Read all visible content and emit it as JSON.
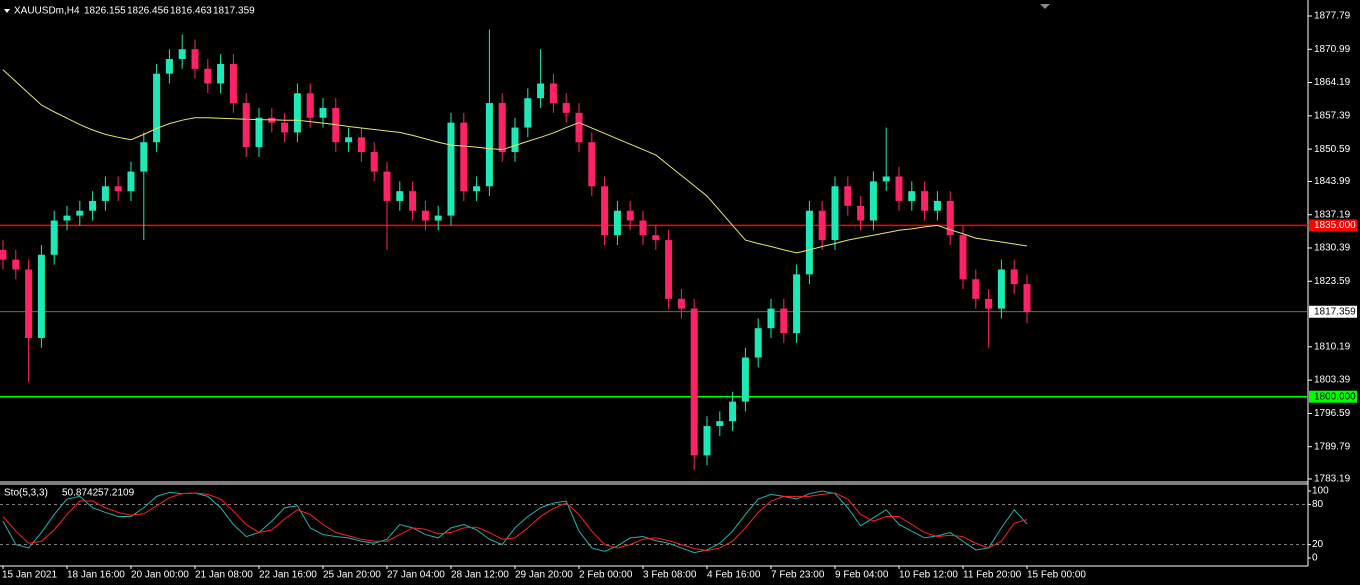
{
  "chart_data": {
    "type": "candlestick",
    "title": "XAUUSDm,H4",
    "header_values": [
      1826.155,
      1826.456,
      1816.463,
      1817.359
    ],
    "categories": [
      "15 Jan 2021",
      null,
      null,
      null,
      null,
      "18 Jan 16:00",
      null,
      null,
      null,
      null,
      "20 Jan 00:00",
      null,
      null,
      null,
      null,
      "21 Jan 08:00",
      null,
      null,
      null,
      null,
      "22 Jan 16:00",
      null,
      null,
      null,
      null,
      "25 Jan 20:00",
      null,
      null,
      null,
      null,
      "27 Jan 04:00",
      null,
      null,
      null,
      null,
      "28 Jan 12:00",
      null,
      null,
      null,
      null,
      "29 Jan 20:00",
      null,
      null,
      null,
      null,
      "2 Feb 00:00",
      null,
      null,
      null,
      null,
      "3 Feb 08:00",
      null,
      null,
      null,
      null,
      "4 Feb 16:00",
      null,
      null,
      null,
      null,
      "7 Feb 23:00",
      null,
      null,
      null,
      null,
      "9 Feb 04:00",
      null,
      null,
      null,
      null,
      "10 Feb 12:00",
      null,
      null,
      null,
      null,
      "11 Feb 20:00",
      null,
      null,
      null,
      null,
      "15 Feb 00:00"
    ],
    "open": [
      1830,
      1828,
      1826,
      1812,
      1829,
      1836,
      1837,
      1838,
      1840,
      1843,
      1842,
      1846,
      1852,
      1866,
      1869,
      1871,
      1867,
      1864,
      1868,
      1860,
      1851,
      1857,
      1856,
      1854,
      1862,
      1857,
      1859,
      1852,
      1853,
      1850,
      1846,
      1840,
      1842,
      1838,
      1836,
      1837,
      1856,
      1842,
      1843,
      1860,
      1850,
      1855,
      1861,
      1864,
      1860,
      1858,
      1852,
      1843,
      1833,
      1838,
      1836,
      1833,
      1832,
      1820,
      1818,
      1788,
      1794,
      1795,
      1799,
      1808,
      1814,
      1818,
      1813,
      1825,
      1838,
      1832,
      1843,
      1839,
      1836,
      1844,
      1845,
      1840,
      1842,
      1838,
      1840,
      1833,
      1824,
      1820,
      1818,
      1826,
      1823
    ],
    "high": [
      1832,
      1830,
      1828,
      1831,
      1838,
      1839,
      1840,
      1842,
      1845,
      1845,
      1848,
      1854,
      1868,
      1871,
      1874,
      1873,
      1869,
      1870,
      1870,
      1862,
      1859,
      1859,
      1858,
      1864,
      1864,
      1861,
      1861,
      1855,
      1855,
      1852,
      1848,
      1844,
      1844,
      1840,
      1839,
      1858,
      1858,
      1845,
      1875,
      1862,
      1857,
      1863,
      1871,
      1866,
      1862,
      1860,
      1854,
      1845,
      1840,
      1840,
      1838,
      1835,
      1834,
      1822,
      1820,
      1796,
      1797,
      1801,
      1810,
      1816,
      1820,
      1820,
      1827,
      1840,
      1840,
      1845,
      1845,
      1841,
      1846,
      1855,
      1847,
      1844,
      1844,
      1842,
      1842,
      1835,
      1826,
      1822,
      1828,
      1828,
      1825
    ],
    "low": [
      1826,
      1824,
      1803,
      1810,
      1827,
      1834,
      1835,
      1836,
      1838,
      1840,
      1840,
      1832,
      1850,
      1864,
      1867,
      1865,
      1862,
      1862,
      1858,
      1849,
      1849,
      1854,
      1852,
      1852,
      1855,
      1855,
      1850,
      1850,
      1848,
      1844,
      1830,
      1838,
      1836,
      1834,
      1834,
      1835,
      1840,
      1840,
      1841,
      1848,
      1848,
      1853,
      1859,
      1858,
      1856,
      1850,
      1841,
      1831,
      1831,
      1834,
      1831,
      1830,
      1818,
      1816,
      1785,
      1786,
      1792,
      1793,
      1797,
      1806,
      1812,
      1811,
      1811,
      1823,
      1830,
      1830,
      1837,
      1834,
      1834,
      1842,
      1838,
      1838,
      1836,
      1836,
      1831,
      1822,
      1818,
      1810,
      1816,
      1821,
      1815
    ],
    "close": [
      1828,
      1826,
      1812,
      1829,
      1836,
      1837,
      1838,
      1840,
      1843,
      1842,
      1846,
      1852,
      1866,
      1869,
      1871,
      1867,
      1864,
      1868,
      1860,
      1851,
      1857,
      1856,
      1854,
      1862,
      1857,
      1859,
      1852,
      1853,
      1850,
      1846,
      1840,
      1842,
      1838,
      1836,
      1837,
      1856,
      1842,
      1843,
      1860,
      1850,
      1855,
      1861,
      1864,
      1860,
      1858,
      1852,
      1843,
      1833,
      1838,
      1836,
      1833,
      1832,
      1820,
      1818,
      1788,
      1794,
      1795,
      1799,
      1808,
      1814,
      1818,
      1813,
      1825,
      1838,
      1832,
      1843,
      1839,
      1836,
      1844,
      1845,
      1840,
      1842,
      1838,
      1840,
      1833,
      1824,
      1820,
      1818,
      1826,
      1823,
      1817.36
    ],
    "up_color": "#1de9b6",
    "down_color": "#ff2266",
    "ma": {
      "color": "#e6e66e",
      "values": [
        1866.8,
        1864.4,
        1862,
        1859.6,
        1858.2,
        1856.9,
        1855.6,
        1854.5,
        1853.6,
        1853,
        1852.5,
        1853.6,
        1854.8,
        1855.8,
        1856.5,
        1857,
        1857,
        1856.9,
        1856.8,
        1856.7,
        1856.6,
        1856.6,
        1856.5,
        1856.5,
        1856.2,
        1855.9,
        1855.6,
        1855.2,
        1854.9,
        1854.6,
        1854.3,
        1854,
        1853.4,
        1852.7,
        1852,
        1851.4,
        1851.2,
        1851,
        1850.7,
        1850.5,
        1851.3,
        1852.2,
        1853,
        1853.9,
        1855,
        1856,
        1854.9,
        1853.8,
        1852.7,
        1851.6,
        1850.5,
        1849.4,
        1847.3,
        1845.2,
        1843.1,
        1841,
        1838,
        1835,
        1832,
        1831.3,
        1830.7,
        1830,
        1829.4,
        1830,
        1830.7,
        1831.3,
        1832,
        1832.5,
        1833,
        1833.5,
        1834,
        1834.3,
        1834.7,
        1835,
        1834.1,
        1833.3,
        1832.4,
        1832,
        1831.6,
        1831.2,
        1830.8
      ]
    },
    "ylim": [
      1782.57,
      1881.06
    ],
    "yticks": [
      1877.79,
      1870.99,
      1864.19,
      1857.39,
      1850.59,
      1843.99,
      1837.19,
      1830.39,
      1823.59,
      1810.19,
      1803.39,
      1796.59,
      1789.79,
      1783.19
    ],
    "levels": [
      {
        "value": 1835,
        "label": "1835.000",
        "color": "#ff0000"
      },
      {
        "value": 1800,
        "label": "1800.000",
        "color": "#00ff00"
      }
    ],
    "bid": 1817.359,
    "bid_color": "#8a96a8",
    "indicator": {
      "title": "Sto(5,3,3)",
      "main_value": 50.8742,
      "signal_value": 57.2109,
      "ylim": [
        0,
        100
      ],
      "yticks": [
        0,
        20,
        80,
        100
      ],
      "levels": [
        20,
        80
      ],
      "main": {
        "color": "#20b2aa",
        "values": [
          55,
          20,
          15,
          38,
          65,
          88,
          92,
          75,
          68,
          62,
          62,
          75,
          92,
          98,
          96,
          97,
          92,
          75,
          50,
          32,
          38,
          55,
          75,
          78,
          45,
          35,
          32,
          30,
          25,
          22,
          28,
          50,
          45,
          35,
          30,
          45,
          50,
          42,
          28,
          20,
          45,
          62,
          75,
          82,
          85,
          40,
          15,
          10,
          18,
          30,
          32,
          26,
          22,
          15,
          8,
          12,
          22,
          40,
          65,
          88,
          95,
          92,
          88,
          96,
          100,
          96,
          75,
          48,
          60,
          72,
          50,
          40,
          30,
          33,
          38,
          25,
          12,
          15,
          45,
          72,
          50.87
        ]
      },
      "signal": {
        "color": "#ff2020",
        "values": [
          62,
          40,
          22,
          25,
          42,
          65,
          85,
          85,
          75,
          68,
          64,
          66,
          78,
          90,
          96,
          97,
          95,
          88,
          70,
          50,
          38,
          42,
          58,
          72,
          65,
          50,
          38,
          33,
          28,
          25,
          25,
          35,
          45,
          43,
          36,
          38,
          45,
          46,
          38,
          28,
          30,
          45,
          62,
          74,
          82,
          65,
          40,
          20,
          15,
          20,
          28,
          30,
          26,
          20,
          14,
          11,
          15,
          25,
          45,
          68,
          85,
          92,
          92,
          92,
          95,
          97,
          88,
          65,
          55,
          62,
          62,
          50,
          38,
          32,
          34,
          32,
          22,
          15,
          25,
          52,
          57.21
        ]
      }
    }
  }
}
